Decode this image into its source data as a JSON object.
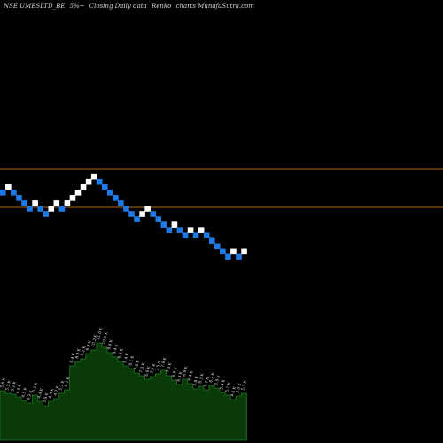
{
  "header": {
    "symbol": "NSE UMESLTD_BE",
    "box_size": "5%~",
    "chart_desc": "Closing Daily data",
    "chart_kind": "Renko",
    "site": "charts MunafaSutra.com"
  },
  "colors": {
    "background": "#000000",
    "up_brick": "#ffffff",
    "down_brick": "#1e7ae6",
    "reference_line": "#b5651d",
    "volume_fill": "#0a3a0a",
    "volume_stroke": "#1f7a1f",
    "volume_label": "#cfcfcf"
  },
  "chart_data": [
    {
      "type": "renko",
      "brick_size_label": "5%",
      "brick_directions": [
        "down",
        "up",
        "down",
        "down",
        "down",
        "down",
        "up",
        "down",
        "down",
        "up",
        "up",
        "down",
        "up",
        "up",
        "up",
        "up",
        "up",
        "up",
        "down",
        "down",
        "down",
        "down",
        "down",
        "down",
        "down",
        "down",
        "up",
        "up",
        "down",
        "down",
        "down",
        "down",
        "up",
        "down",
        "down",
        "up",
        "down",
        "up",
        "down",
        "down",
        "down",
        "down",
        "down",
        "up",
        "down",
        "up"
      ],
      "reference_lines": 2
    },
    {
      "type": "area",
      "series_name": "volume",
      "labels": [
        "5.6 K",
        "5.3 K",
        "5.2 K",
        "4.9 K",
        "4.5 K",
        "4.2 K",
        "5.1 K",
        "4.4 K",
        "3.9 K",
        "4.4 K",
        "4.7 K",
        "5.3 K",
        "5.7 K",
        "8.4 K",
        "8.9 K",
        "9.2 K",
        "9.8 K",
        "10.2 K",
        "11.0 K",
        "10.5 K",
        "9.9 K",
        "9.4 K",
        "8.9 K",
        "8.4 K",
        "8.1 K",
        "7.6 K",
        "7.3 K",
        "6.9 K",
        "7.2 K",
        "7.5 K",
        "7.9 K",
        "7.3 K",
        "6.8 K",
        "6.3 K",
        "6.9 K",
        "6.4 K",
        "5.8 K",
        "6.1 K",
        "5.7 K",
        "6.2 K",
        "5.9 K",
        "5.4 K",
        "5.1 K",
        "4.6 K",
        "5.0 K",
        "5.3 K"
      ]
    }
  ]
}
